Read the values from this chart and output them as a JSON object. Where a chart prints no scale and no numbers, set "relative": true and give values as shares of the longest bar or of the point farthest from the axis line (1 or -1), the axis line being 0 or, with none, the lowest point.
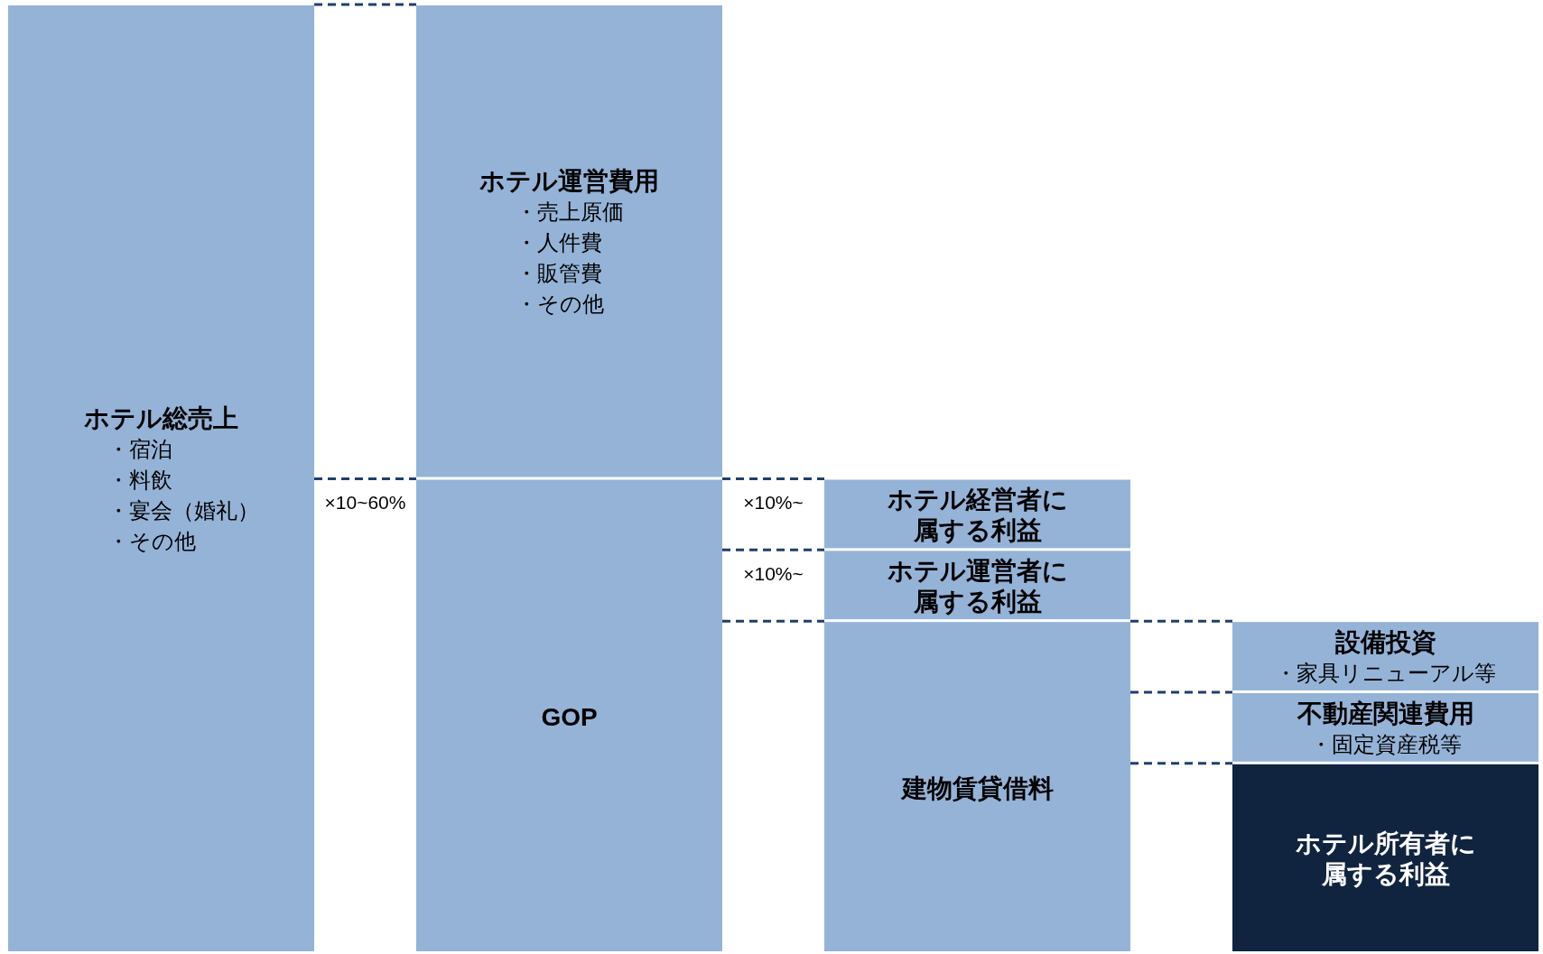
{
  "chart_data": {
    "type": "bar",
    "stacked": true,
    "relative": true,
    "categories": [
      null,
      null,
      null,
      null
    ],
    "series": [
      {
        "name": "ホテル総売上",
        "color": "#95b3d7",
        "values": [
          1,
          null,
          null,
          null
        ]
      },
      {
        "name": "GOP",
        "color": "#95b3d7",
        "values": [
          null,
          0.5,
          null,
          null
        ]
      },
      {
        "name": "ホテル運営費用",
        "color": "#95b3d7",
        "values": [
          null,
          0.5,
          null,
          null
        ]
      },
      {
        "name": "建物賃貸借料",
        "color": "#95b3d7",
        "values": [
          null,
          null,
          0.35,
          null
        ]
      },
      {
        "name": "ホテル運営者に属する利益",
        "color": "#95b3d7",
        "values": [
          null,
          null,
          0.075,
          null
        ]
      },
      {
        "name": "ホテル経営者に属する利益",
        "color": "#95b3d7",
        "values": [
          null,
          null,
          0.075,
          null
        ]
      },
      {
        "name": "ホテル所有者に属する利益",
        "color": "#10243f",
        "values": [
          null,
          null,
          null,
          0.2
        ]
      },
      {
        "name": "不動産関連費用",
        "color": "#95b3d7",
        "values": [
          null,
          null,
          null,
          0.075
        ]
      },
      {
        "name": "設備投資",
        "color": "#95b3d7",
        "values": [
          null,
          null,
          null,
          0.075
        ]
      }
    ],
    "annotations": [
      "×10~60%",
      "×10%~",
      "×10%~",
      "・宿泊",
      "・料飲",
      "・宴会（婚礼）",
      "・その他",
      "・売上原価",
      "・人件費",
      "・販管費",
      "・その他",
      "・固定資産税等",
      "・家具リニューアル等"
    ]
  }
}
